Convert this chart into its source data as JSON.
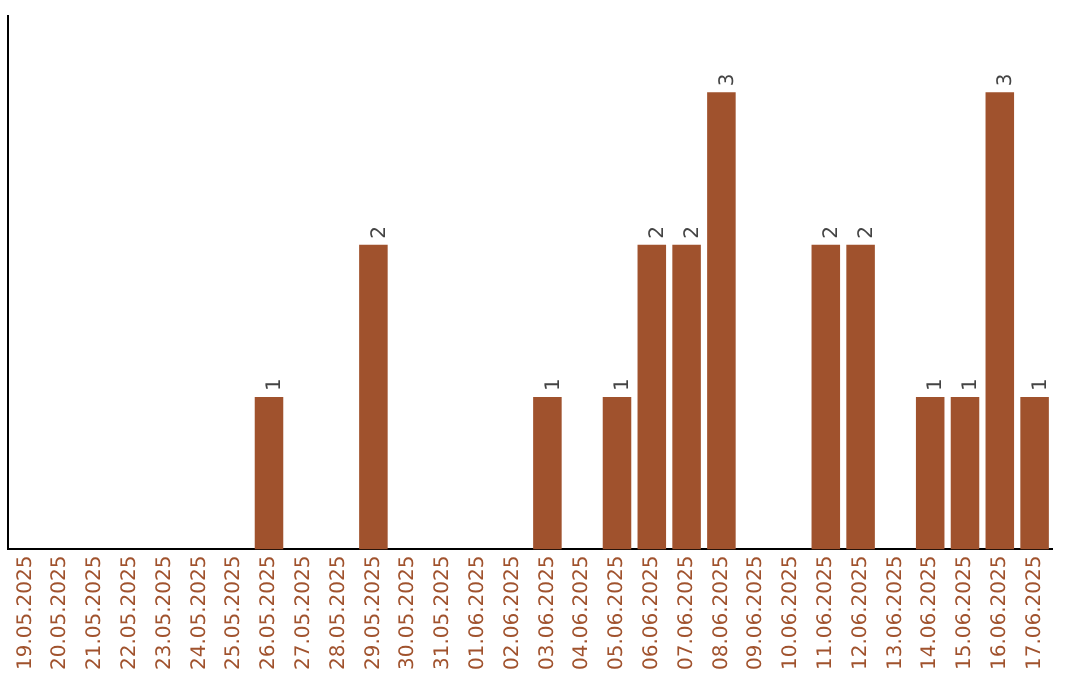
{
  "chart_data": {
    "type": "bar",
    "categories": [
      "19.05.2025",
      "20.05.2025",
      "21.05.2025",
      "22.05.2025",
      "23.05.2025",
      "24.05.2025",
      "25.05.2025",
      "26.05.2025",
      "27.05.2025",
      "28.05.2025",
      "29.05.2025",
      "30.05.2025",
      "31.05.2025",
      "01.06.2025",
      "02.06.2025",
      "03.06.2025",
      "04.06.2025",
      "05.06.2025",
      "06.06.2025",
      "07.06.2025",
      "08.06.2025",
      "09.06.2025",
      "10.06.2025",
      "11.06.2025",
      "12.06.2025",
      "13.06.2025",
      "14.06.2025",
      "15.06.2025",
      "16.06.2025",
      "17.06.2025"
    ],
    "values": [
      0,
      0,
      0,
      0,
      0,
      0,
      0,
      1,
      0,
      0,
      2,
      0,
      0,
      0,
      0,
      1,
      0,
      1,
      2,
      2,
      3,
      0,
      0,
      2,
      2,
      0,
      1,
      1,
      3,
      1
    ],
    "value_labels": [
      null,
      null,
      null,
      null,
      null,
      null,
      null,
      "1",
      null,
      null,
      "2",
      null,
      null,
      null,
      null,
      "1",
      null,
      "1",
      "2",
      "2",
      "3",
      null,
      null,
      "2",
      "2",
      null,
      "1",
      "1",
      "3",
      "1"
    ],
    "color": "#a0522d",
    "grid": false,
    "legend": false
  }
}
